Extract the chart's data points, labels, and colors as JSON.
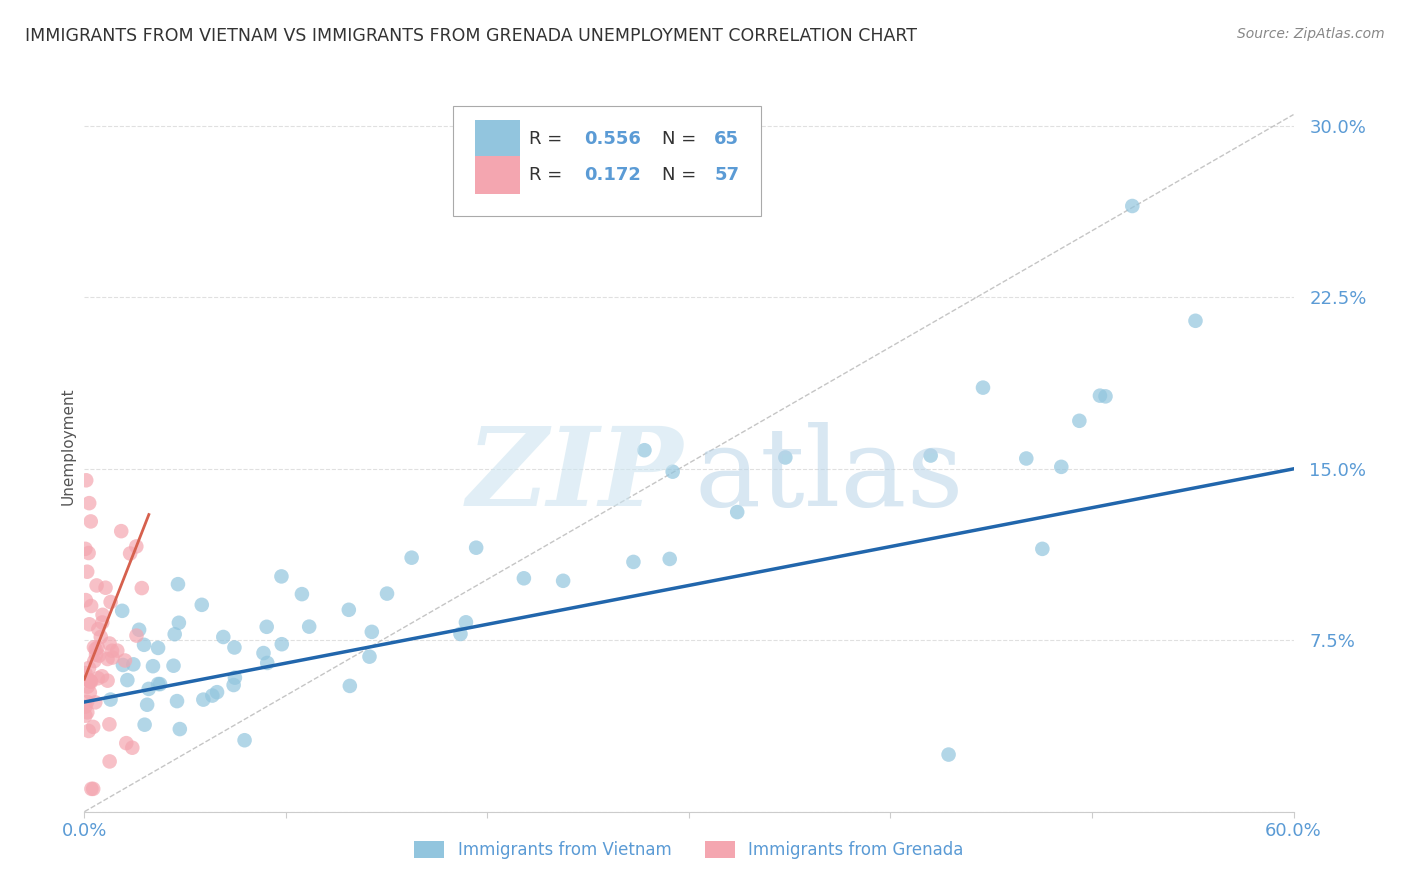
{
  "title": "IMMIGRANTS FROM VIETNAM VS IMMIGRANTS FROM GRENADA UNEMPLOYMENT CORRELATION CHART",
  "source": "Source: ZipAtlas.com",
  "ylabel": "Unemployment",
  "xmin": 0.0,
  "xmax": 0.6,
  "ymin": 0.0,
  "ymax": 0.32,
  "vietnam_color": "#92c5de",
  "grenada_color": "#f4a6b0",
  "vietnam_line_color": "#2166ac",
  "grenada_line_color": "#d6604d",
  "vietnam_R": 0.556,
  "vietnam_N": 65,
  "grenada_R": 0.172,
  "grenada_N": 57,
  "background_color": "#ffffff",
  "grid_color": "#dddddd",
  "ytick_vals": [
    0.0,
    0.075,
    0.15,
    0.225,
    0.3
  ],
  "ytick_labels": [
    "",
    "7.5%",
    "15.0%",
    "22.5%",
    "30.0%"
  ],
  "xtick_vals": [
    0.0,
    0.1,
    0.2,
    0.3,
    0.4,
    0.5,
    0.6
  ],
  "xtick_labels": [
    "0.0%",
    "",
    "",
    "",
    "",
    "",
    "60.0%"
  ]
}
